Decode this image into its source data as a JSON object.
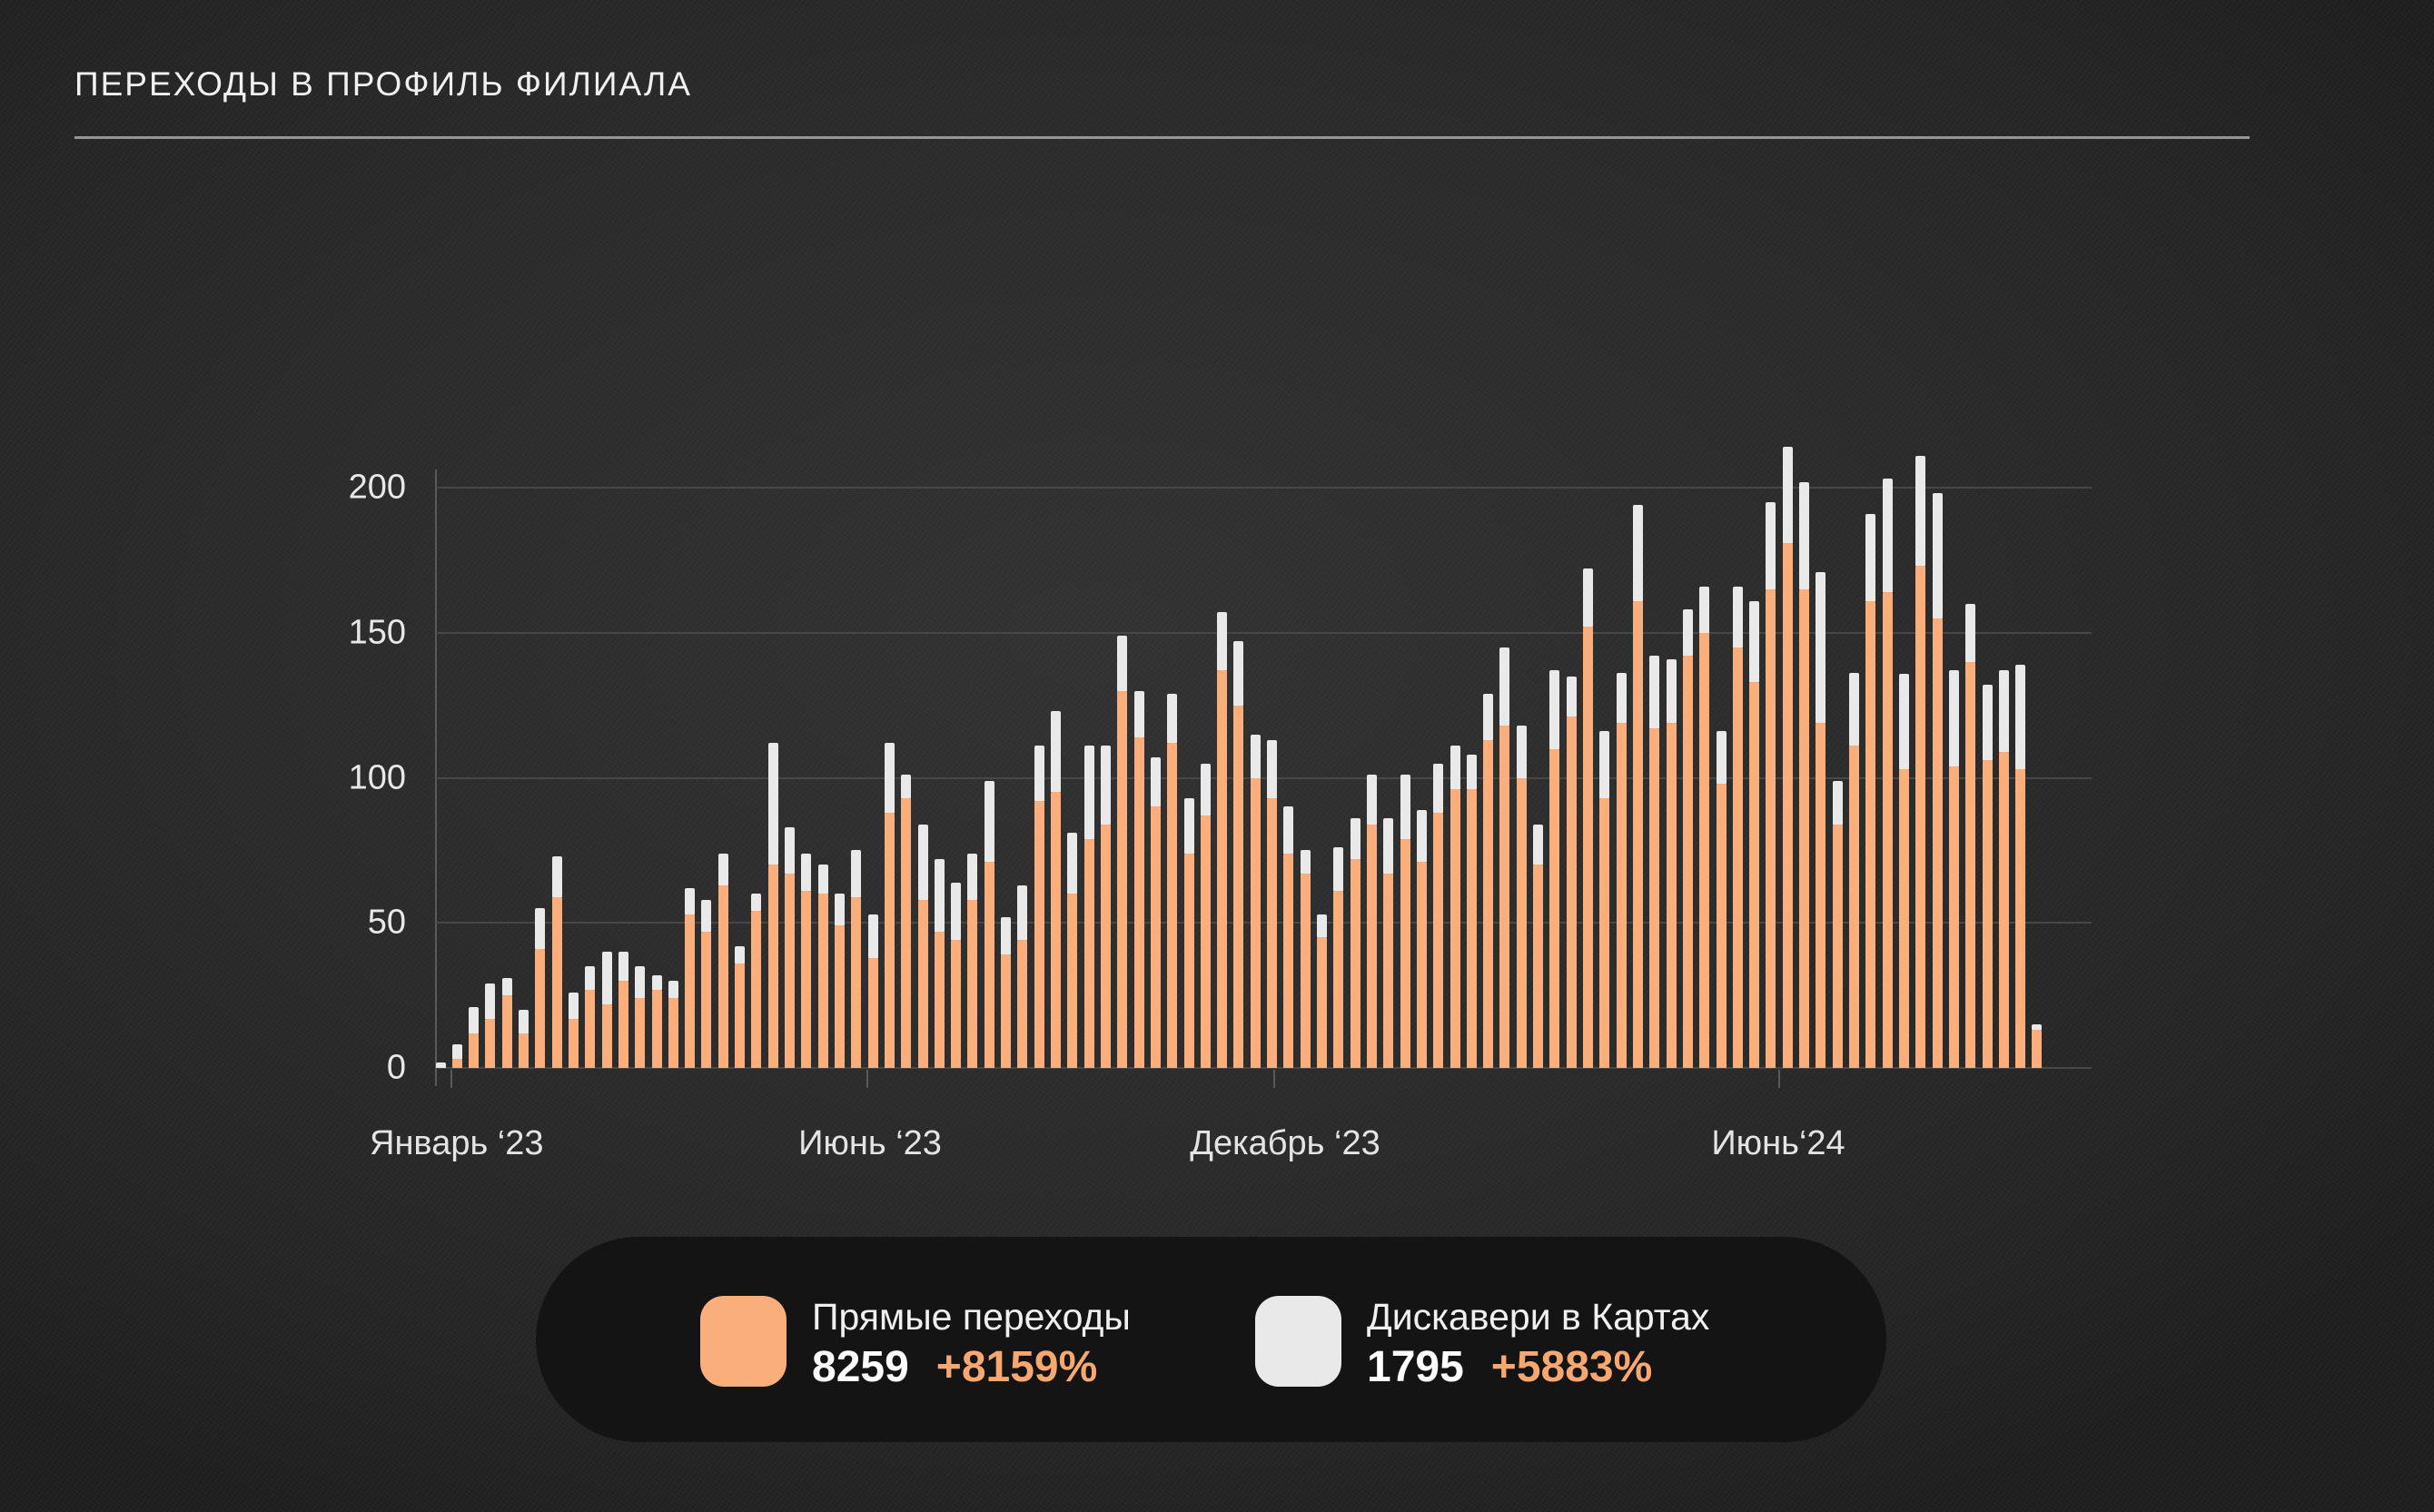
{
  "title": "ПЕРЕХОДЫ В ПРОФИЛЬ ФИЛИАЛА",
  "colors": {
    "direct": "#FAAE7B",
    "discovery": "#E9E9E9",
    "delta_text": "#F8A76F",
    "gridline": "#474747",
    "legend_bg": "#141414"
  },
  "chart_data": {
    "type": "bar",
    "stacked": true,
    "title": "ПЕРЕХОДЫ В ПРОФИЛЬ ФИЛИАЛА",
    "ylim": [
      0,
      200
    ],
    "y_ticks": [
      "0",
      "50",
      "100",
      "150",
      "200"
    ],
    "x_tick_labels": [
      "Январь ‘23",
      "Июнь ‘23",
      "Декабрь ‘23",
      "Июнь‘24"
    ],
    "grid": true,
    "legend_position": "bottom",
    "series": [
      {
        "name": "Прямые переходы",
        "total": "8259",
        "delta": "+8159%",
        "values": [
          0,
          3,
          12,
          17,
          25,
          12,
          41,
          59,
          17,
          27,
          22,
          30,
          24,
          27,
          24,
          53,
          47,
          63,
          36,
          54,
          70,
          67,
          61,
          60,
          49,
          59,
          38,
          88,
          93,
          58,
          47,
          44,
          58,
          71,
          39,
          44,
          92,
          95,
          60,
          79,
          84,
          130,
          114,
          90,
          112,
          74,
          87,
          137,
          125,
          100,
          93,
          74,
          67,
          45,
          61,
          72,
          84,
          67,
          79,
          71,
          88,
          96,
          96,
          113,
          118,
          100,
          70,
          110,
          121,
          152,
          93,
          119,
          161,
          117,
          119,
          142,
          150,
          98,
          145,
          133,
          165,
          181,
          165,
          119,
          84,
          111,
          161,
          164,
          103,
          173,
          155,
          104,
          140,
          106,
          109,
          103,
          13
        ]
      },
      {
        "name": "Дискавери в Картах",
        "total": "1795",
        "delta": "+5883%",
        "values": [
          2,
          5,
          9,
          12,
          6,
          8,
          14,
          14,
          9,
          8,
          18,
          10,
          11,
          5,
          6,
          9,
          11,
          11,
          6,
          6,
          42,
          16,
          13,
          10,
          11,
          16,
          15,
          24,
          8,
          26,
          25,
          20,
          16,
          28,
          13,
          19,
          19,
          28,
          21,
          32,
          27,
          19,
          16,
          17,
          17,
          19,
          18,
          20,
          22,
          15,
          20,
          16,
          8,
          8,
          15,
          14,
          17,
          19,
          22,
          18,
          17,
          15,
          12,
          16,
          27,
          18,
          14,
          27,
          14,
          20,
          23,
          17,
          33,
          25,
          22,
          16,
          16,
          18,
          21,
          28,
          30,
          33,
          37,
          52,
          15,
          25,
          30,
          39,
          33,
          38,
          43,
          33,
          20,
          26,
          28,
          36,
          2
        ]
      }
    ]
  },
  "legend": {
    "items": [
      {
        "label": "Прямые переходы",
        "total": "8259",
        "delta": "+8159%"
      },
      {
        "label": "Дискавери в Картах",
        "total": "1795",
        "delta": "+5883%"
      }
    ]
  }
}
